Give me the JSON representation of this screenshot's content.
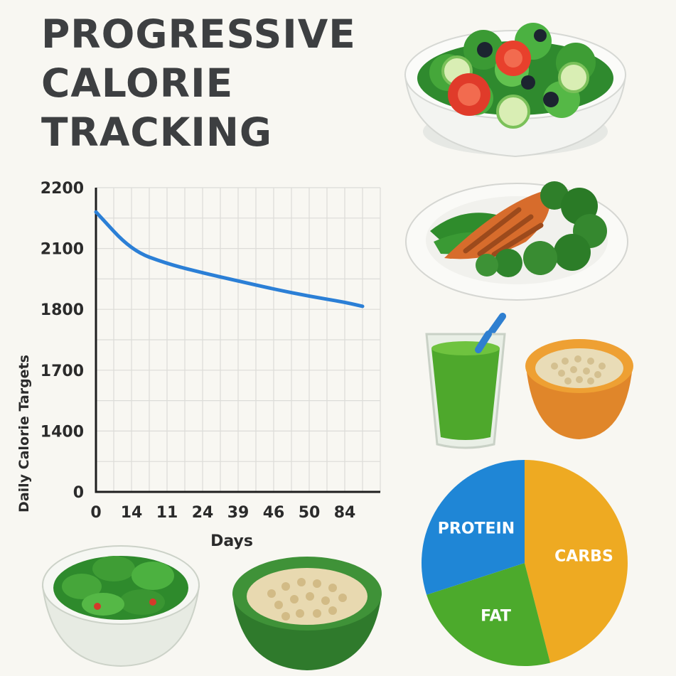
{
  "title_lines": [
    "PROGRESSIVE",
    "CALORIE",
    "TRACKING"
  ],
  "chart_data": [
    {
      "type": "line",
      "xlabel": "Days",
      "ylabel": "Daily Calorie Targets",
      "x_tick_labels": [
        "0",
        "14",
        "11",
        "24",
        "39",
        "46",
        "50",
        "84"
      ],
      "y_tick_labels": [
        "0",
        "1400",
        "1700",
        "1800",
        "2100",
        "2200"
      ],
      "grid": true,
      "series": [
        {
          "color": "#2b7fd6",
          "points": [
            [
              0,
              2160
            ],
            [
              1,
              2090
            ],
            [
              2,
              2025
            ],
            [
              3,
              1980
            ],
            [
              4,
              1940
            ],
            [
              5,
              1900
            ],
            [
              6,
              1865
            ],
            [
              7,
              1835
            ],
            [
              7.5,
              1815
            ]
          ]
        }
      ]
    },
    {
      "type": "pie",
      "labels": [
        "PROTEIN",
        "CARBS",
        "FAT"
      ],
      "values": [
        30,
        46,
        24
      ],
      "colors": [
        "#1f86d6",
        "#eeaa22",
        "#4caa2c"
      ]
    }
  ]
}
